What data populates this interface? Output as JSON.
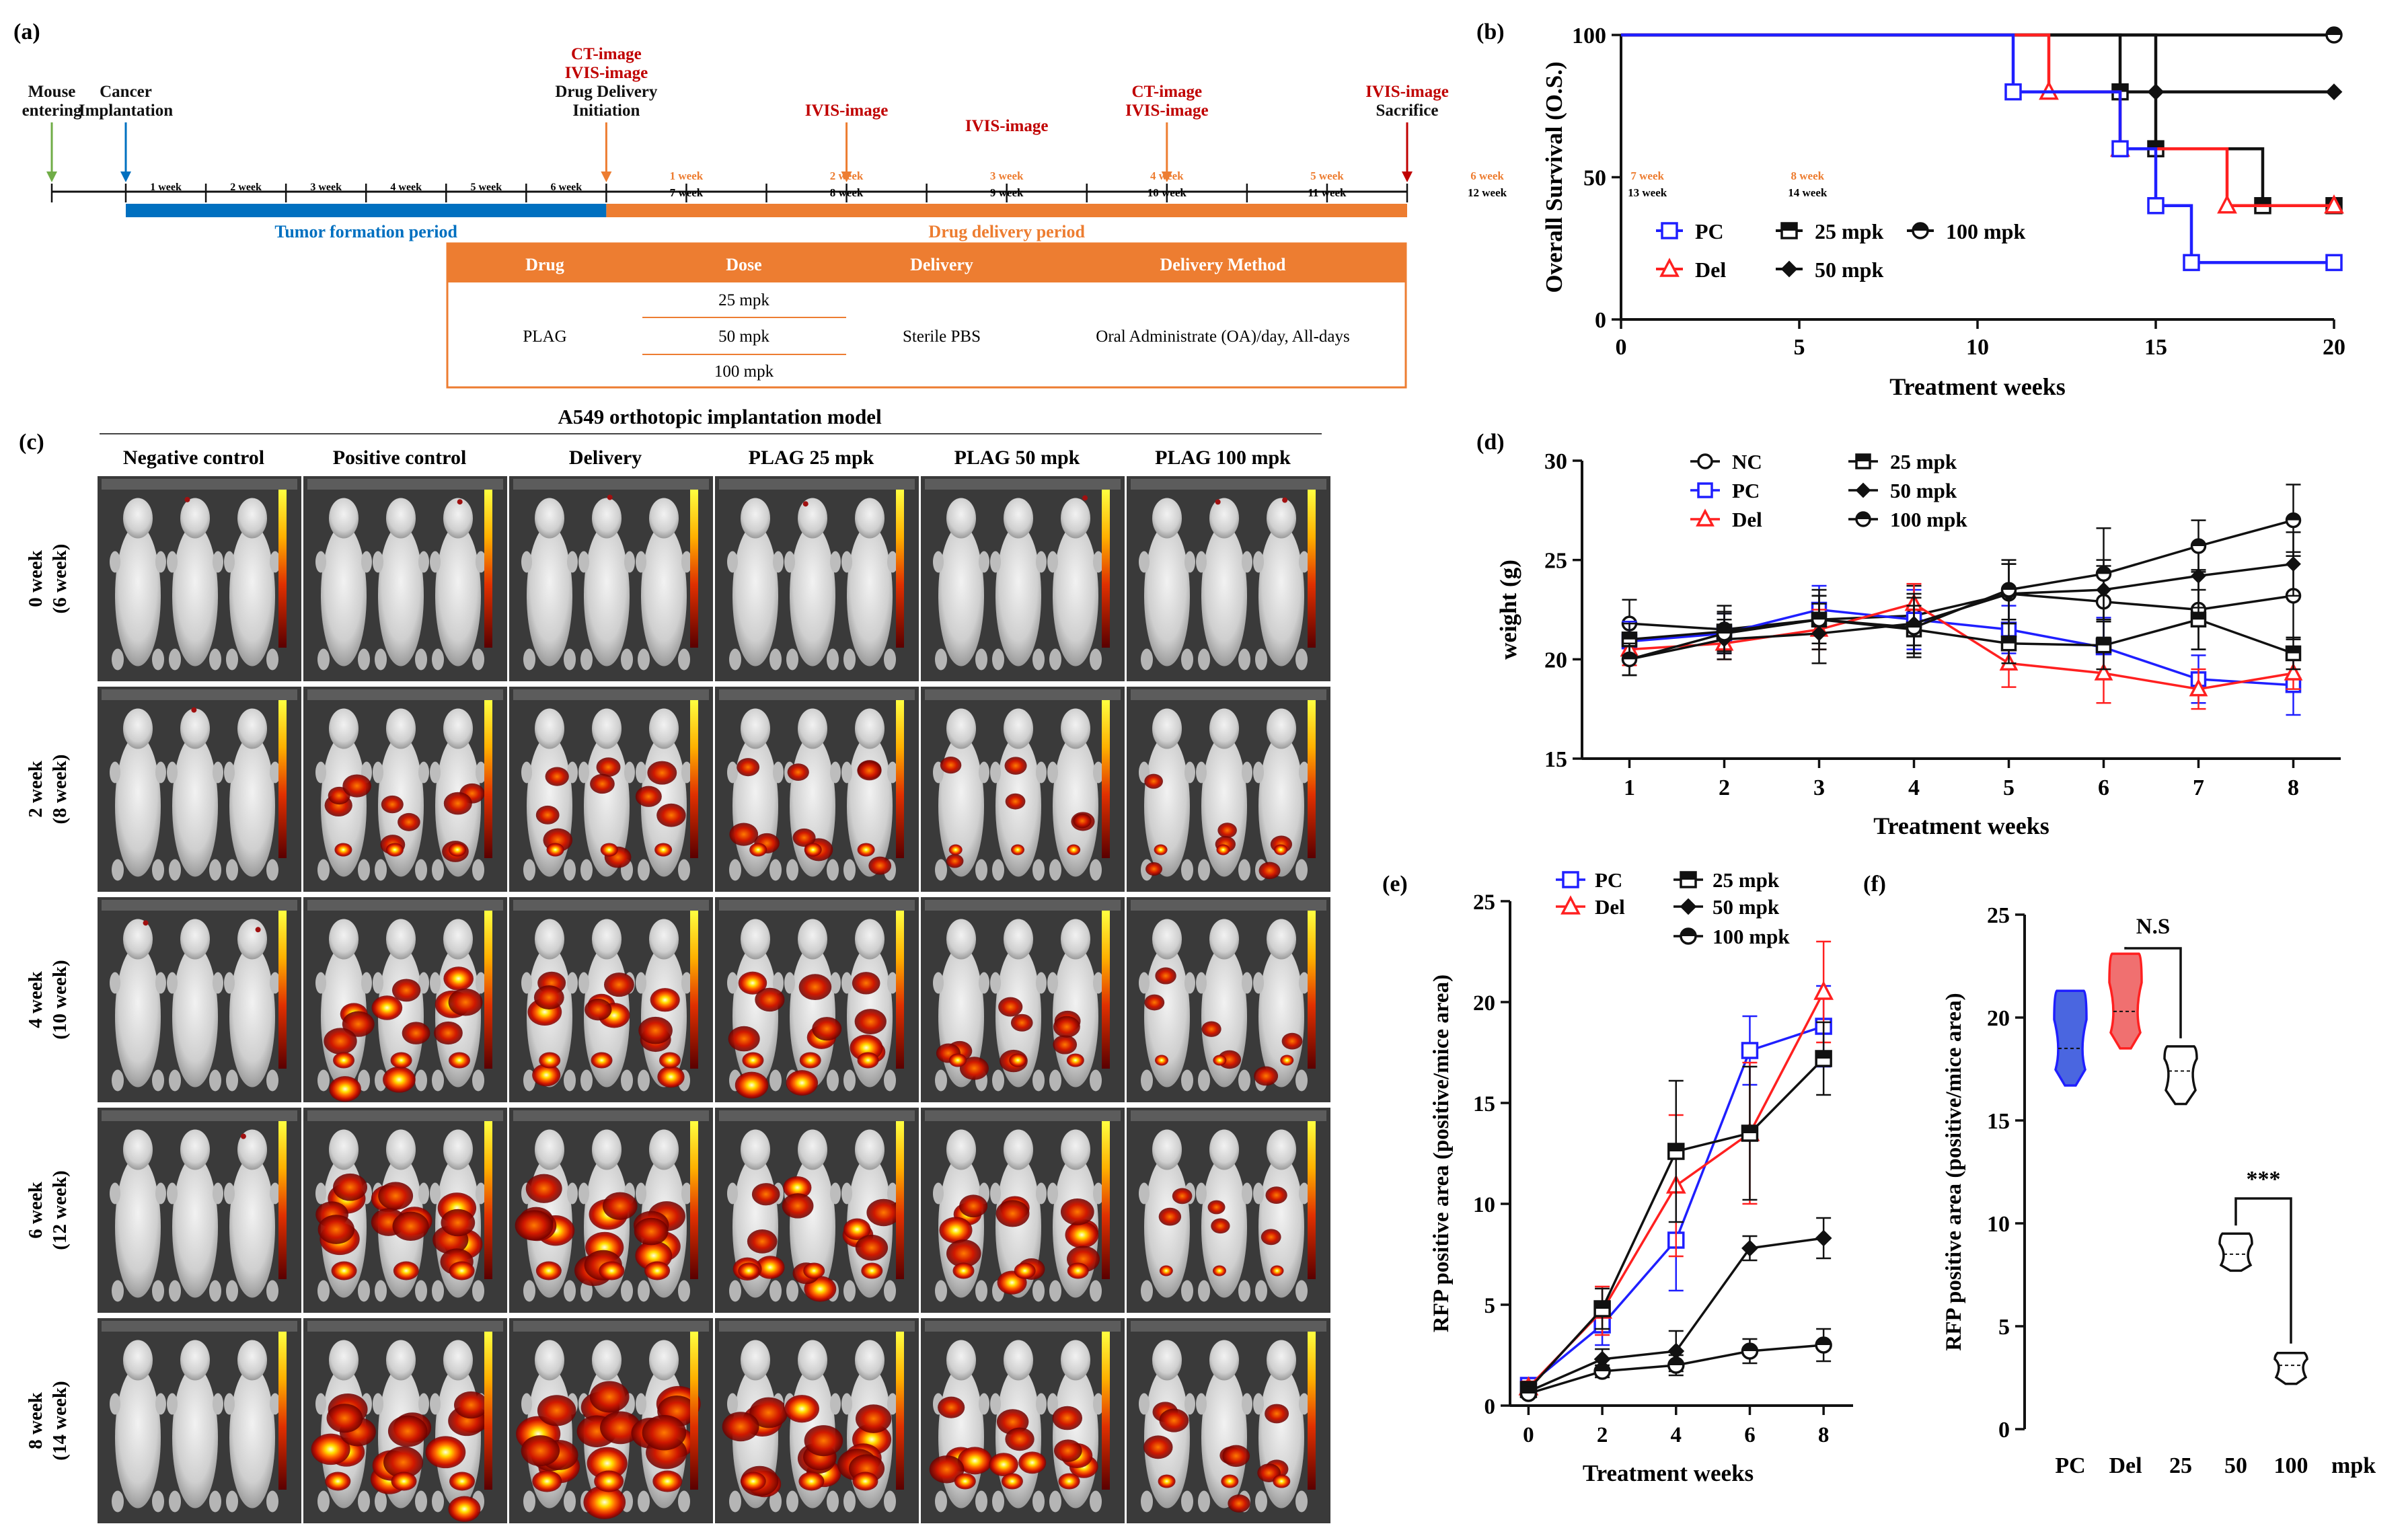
{
  "panel_labels": {
    "a": "(a)",
    "b": "(b)",
    "c": "(c)",
    "d": "(d)",
    "e": "(e)",
    "f": "(f)"
  },
  "colors": {
    "orange": "#ED7D31",
    "blue": "#0070C0",
    "red": "#C00000",
    "pc": "#1f1fff",
    "del": "#ff2020",
    "black": "#111111",
    "green": "#70AD47"
  },
  "timeline": {
    "events": [
      {
        "label_lines": [
          "Mouse",
          "entering"
        ],
        "color": "black",
        "arrow": "green",
        "week": -1.85
      },
      {
        "label_lines": [
          "Cancer",
          "Implantation"
        ],
        "color": "black",
        "arrow": "blue",
        "week": 0
      },
      {
        "label_lines": [
          "CT-image",
          "IVIS-image",
          "Drug Delivery",
          "Initiation"
        ],
        "red_lines": 2,
        "arrow": "orange",
        "week": 6
      },
      {
        "label_lines": [
          "IVIS-image"
        ],
        "red_lines": 1,
        "arrow": "orange",
        "week": 9
      },
      {
        "label_lines": [
          "IVIS-image"
        ],
        "red_lines": 1,
        "arrow": "none",
        "week": 11
      },
      {
        "label_lines": [
          "CT-image",
          "IVIS-image"
        ],
        "red_lines": 2,
        "arrow": "orange",
        "week": 13
      },
      {
        "label_lines": [
          "IVIS-image",
          "Sacrifice"
        ],
        "red_lines": 1,
        "arrow": "red",
        "week": 16
      }
    ],
    "top_weeks": [
      "1 week",
      "2 week",
      "3 week",
      "4 week",
      "5 week",
      "6 week",
      "7 week",
      "8 week"
    ],
    "pre_weeks": [
      "1 week",
      "2 week",
      "3 week",
      "4 week",
      "5 week",
      "6 week"
    ],
    "post_weeks": [
      "7 week",
      "8 week",
      "9 week",
      "10 week",
      "11 week",
      "12 week",
      "13 week",
      "14 week"
    ],
    "tumor_period": "Tumor formation period",
    "drug_period": "Drug delivery period"
  },
  "drug_table": {
    "headers": [
      "Drug",
      "Dose",
      "Delivery",
      "Delivery Method"
    ],
    "drug": "PLAG",
    "doses": [
      "25 mpk",
      "50 mpk",
      "100 mpk"
    ],
    "delivery": "Sterile PBS",
    "method": "Oral Administrate (OA)/day, All-days"
  },
  "imaging": {
    "title": "A549 orthotopic implantation model",
    "columns": [
      "Negative control",
      "Positive control",
      "Delivery",
      "PLAG 25 mpk",
      "PLAG 50 mpk",
      "PLAG 100 mpk"
    ],
    "rows": [
      {
        "line1": "0 week",
        "line2": "(6 week)"
      },
      {
        "line1": "2 week",
        "line2": "(8 week)"
      },
      {
        "line1": "4 week",
        "line2": "(10 week)"
      },
      {
        "line1": "6 week",
        "line2": "(12 week)"
      },
      {
        "line1": "8 week",
        "line2": "(14 week)"
      }
    ],
    "signal_levels": [
      [
        0,
        0,
        0,
        0,
        0,
        0
      ],
      [
        0,
        2,
        2,
        2,
        1,
        1
      ],
      [
        0,
        3,
        3,
        3,
        2,
        1
      ],
      [
        0,
        4,
        4,
        3,
        3,
        1
      ],
      [
        0,
        4,
        5,
        4,
        3,
        2
      ]
    ]
  },
  "chart_data": [
    {
      "id": "b",
      "type": "line",
      "subtype": "step",
      "xlabel": "Treatment weeks",
      "ylabel": "Overall Survival (O.S.)",
      "xlim": [
        0,
        20
      ],
      "ylim": [
        0,
        100
      ],
      "xticks": [
        0,
        5,
        10,
        15,
        20
      ],
      "yticks": [
        0,
        50,
        100
      ],
      "legend": [
        {
          "name": "PC",
          "color": "pc",
          "marker": "square"
        },
        {
          "name": "25 mpk",
          "color": "black",
          "marker": "square-half"
        },
        {
          "name": "100 mpk",
          "color": "black",
          "marker": "circle-half"
        },
        {
          "name": "Del",
          "color": "del",
          "marker": "triangle"
        },
        {
          "name": "50 mpk",
          "color": "black",
          "marker": "diamond"
        }
      ],
      "series": [
        {
          "name": "PC",
          "color": "pc",
          "marker": "square",
          "steps": [
            [
              0,
              100
            ],
            [
              11,
              80
            ],
            [
              14,
              60
            ],
            [
              15,
              40
            ],
            [
              16,
              20
            ],
            [
              20,
              20
            ]
          ]
        },
        {
          "name": "Del",
          "color": "del",
          "marker": "triangle",
          "steps": [
            [
              0,
              100
            ],
            [
              12,
              80
            ],
            [
              14,
              60
            ],
            [
              17,
              40
            ],
            [
              20,
              40
            ]
          ]
        },
        {
          "name": "25 mpk",
          "color": "black",
          "marker": "square-half",
          "steps": [
            [
              0,
              100
            ],
            [
              14,
              80
            ],
            [
              15,
              60
            ],
            [
              18,
              40
            ],
            [
              20,
              40
            ]
          ]
        },
        {
          "name": "50 mpk",
          "color": "black",
          "marker": "diamond",
          "steps": [
            [
              0,
              100
            ],
            [
              15,
              80
            ],
            [
              20,
              80
            ]
          ]
        },
        {
          "name": "100 mpk",
          "color": "black",
          "marker": "circle-half",
          "steps": [
            [
              0,
              100
            ],
            [
              20,
              100
            ]
          ]
        }
      ]
    },
    {
      "id": "d",
      "type": "line",
      "xlabel": "Treatment weeks",
      "ylabel": "weight (g)",
      "xlim": [
        0.5,
        8.5
      ],
      "ylim": [
        15,
        30
      ],
      "xticks": [
        1,
        2,
        3,
        4,
        5,
        6,
        7,
        8
      ],
      "yticks": [
        15,
        20,
        25,
        30
      ],
      "x": [
        1,
        2,
        3,
        4,
        5,
        6,
        7,
        8
      ],
      "legend": [
        {
          "name": "NC",
          "color": "black",
          "marker": "circle-open"
        },
        {
          "name": "25 mpk",
          "color": "black",
          "marker": "square-half"
        },
        {
          "name": "PC",
          "color": "pc",
          "marker": "square"
        },
        {
          "name": "50 mpk",
          "color": "black",
          "marker": "diamond"
        },
        {
          "name": "Del",
          "color": "del",
          "marker": "triangle"
        },
        {
          "name": "100 mpk",
          "color": "black",
          "marker": "circle-half"
        }
      ],
      "series": [
        {
          "name": "NC",
          "color": "black",
          "marker": "circle-open",
          "values": [
            21.8,
            21.5,
            22.0,
            22.2,
            23.3,
            22.9,
            22.5,
            23.2
          ],
          "err": [
            1.2,
            1.2,
            1.2,
            1.5,
            1.5,
            1.8,
            2.0,
            2.2
          ]
        },
        {
          "name": "PC",
          "color": "pc",
          "marker": "square",
          "values": [
            20.9,
            21.3,
            22.5,
            22.0,
            21.5,
            20.6,
            19.0,
            18.7
          ],
          "err": [
            1.0,
            1.0,
            1.2,
            1.5,
            1.2,
            1.5,
            1.2,
            1.5
          ]
        },
        {
          "name": "Del",
          "color": "del",
          "marker": "triangle",
          "values": [
            20.5,
            20.8,
            21.5,
            22.8,
            19.8,
            19.3,
            18.5,
            19.3
          ],
          "err": [
            0.8,
            0.8,
            1.0,
            1.0,
            1.2,
            1.5,
            1.0,
            0.8
          ]
        },
        {
          "name": "25 mpk",
          "color": "black",
          "marker": "square-half",
          "values": [
            21.0,
            21.4,
            22.0,
            21.5,
            20.8,
            20.7,
            22.0,
            20.3
          ],
          "err": [
            0.8,
            1.0,
            1.2,
            1.2,
            1.0,
            1.2,
            1.5,
            0.8
          ]
        },
        {
          "name": "50 mpk",
          "color": "black",
          "marker": "diamond",
          "values": [
            20.0,
            21.0,
            21.3,
            21.8,
            23.3,
            23.5,
            24.2,
            24.8
          ],
          "err": [
            0.8,
            1.0,
            1.5,
            1.5,
            1.5,
            1.5,
            1.6,
            1.6
          ]
        },
        {
          "name": "100 mpk",
          "color": "black",
          "marker": "circle-half",
          "values": [
            20.0,
            21.3,
            22.0,
            21.6,
            23.5,
            24.3,
            25.7,
            27.0
          ],
          "err": [
            0.8,
            1.0,
            1.5,
            1.5,
            1.5,
            2.3,
            1.3,
            1.8
          ]
        }
      ]
    },
    {
      "id": "e",
      "type": "line",
      "xlabel": "Treatment weeks",
      "ylabel": "RFP positive area (positive/mice area)",
      "xlim": [
        -0.5,
        8.8
      ],
      "ylim": [
        0,
        25
      ],
      "xticks": [
        0,
        2,
        4,
        6,
        8
      ],
      "yticks": [
        0,
        5,
        10,
        15,
        20,
        25
      ],
      "x": [
        0,
        2,
        4,
        6,
        8
      ],
      "legend": [
        {
          "name": "PC",
          "color": "pc",
          "marker": "square"
        },
        {
          "name": "25 mpk",
          "color": "black",
          "marker": "square-half"
        },
        {
          "name": "Del",
          "color": "del",
          "marker": "triangle"
        },
        {
          "name": "50 mpk",
          "color": "black",
          "marker": "diamond"
        },
        {
          "name": "100 mpk",
          "color": "black",
          "marker": "circle-half"
        }
      ],
      "series": [
        {
          "name": "PC",
          "color": "pc",
          "marker": "square",
          "values": [
            1.0,
            4.0,
            8.2,
            17.6,
            18.8
          ],
          "err": [
            0.3,
            1.0,
            2.5,
            1.7,
            2.0
          ]
        },
        {
          "name": "Del",
          "color": "del",
          "marker": "triangle",
          "values": [
            0.9,
            4.7,
            10.9,
            13.5,
            20.5
          ],
          "err": [
            0.3,
            1.2,
            3.5,
            3.5,
            2.5
          ]
        },
        {
          "name": "25 mpk",
          "color": "black",
          "marker": "square-half",
          "values": [
            0.8,
            4.8,
            12.6,
            13.5,
            17.2
          ],
          "err": [
            0.3,
            1.0,
            3.5,
            3.3,
            1.8
          ]
        },
        {
          "name": "50 mpk",
          "color": "black",
          "marker": "diamond",
          "values": [
            0.7,
            2.3,
            2.7,
            7.8,
            8.3
          ],
          "err": [
            0.2,
            0.5,
            1.0,
            0.6,
            1.0
          ]
        },
        {
          "name": "100 mpk",
          "color": "black",
          "marker": "circle-half",
          "values": [
            0.6,
            1.7,
            2.0,
            2.7,
            3.0
          ],
          "err": [
            0.2,
            0.3,
            0.5,
            0.6,
            0.8
          ]
        }
      ]
    },
    {
      "id": "f",
      "type": "violin",
      "ylabel": "RFP positive area (positive/mice area)",
      "ylim": [
        0,
        25
      ],
      "yticks": [
        0,
        5,
        10,
        15,
        20,
        25
      ],
      "categories": [
        "PC",
        "Del",
        "25",
        "50",
        "100"
      ],
      "unit": "mpk",
      "groups": [
        {
          "name": "PC",
          "color": "pc",
          "fill": "#4a66e0",
          "min": 16.7,
          "max": 21.3,
          "median": 18.5
        },
        {
          "name": "Del",
          "color": "del",
          "fill": "#f07070",
          "min": 18.5,
          "max": 23.1,
          "median": 20.3
        },
        {
          "name": "25",
          "color": "black",
          "fill": "none",
          "min": 15.8,
          "max": 18.6,
          "median": 17.4
        },
        {
          "name": "50",
          "color": "black",
          "fill": "none",
          "min": 7.7,
          "max": 9.5,
          "median": 8.5
        },
        {
          "name": "100",
          "color": "black",
          "fill": "none",
          "min": 2.2,
          "max": 3.7,
          "median": 3.1
        }
      ],
      "annotations": [
        {
          "text": "N.S",
          "from": "Del",
          "to": "25"
        },
        {
          "text": "***",
          "from": "50",
          "to": "100"
        }
      ]
    }
  ]
}
